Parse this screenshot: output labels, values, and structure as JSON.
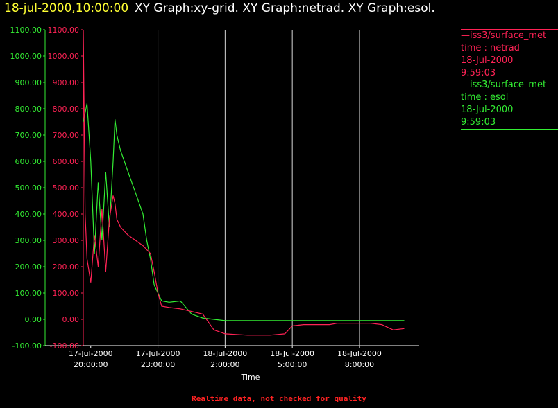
{
  "header": {
    "timestamp": "18-jul-2000,10:00:00",
    "title": "XY Graph:xy-grid.  XY Graph:netrad.  XY Graph:esol."
  },
  "legend": [
    {
      "line1": "—iss3/surface_met",
      "line2": "time : netrad",
      "line3": "18-Jul-2000",
      "line4": "9:59:03",
      "color": "#ff2255"
    },
    {
      "line1": "—iss3/surface_met",
      "line2": "time : esol",
      "line3": "18-Jul-2000",
      "line4": "9:59:03",
      "color": "#33ee33"
    }
  ],
  "footer": "Realtime data, not checked for quality",
  "chart_data": {
    "type": "line",
    "title": "",
    "xlabel": "Time",
    "ylabel": "",
    "ylim": [
      -100,
      1100
    ],
    "xlim": [
      "2000-07-17 19:40",
      "2000-07-18 10:40"
    ],
    "y_ticks": [
      "1100.00",
      "1000.00",
      "900.00",
      "800.00",
      "700.00",
      "600.00",
      "500.00",
      "400.00",
      "300.00",
      "200.00",
      "100.00",
      "0.00",
      "-100.00"
    ],
    "x_ticks": [
      {
        "date": "17-Jul-2000",
        "time": "20:00:00"
      },
      {
        "date": "17-Jul-2000",
        "time": "23:00:00"
      },
      {
        "date": "18-Jul-2000",
        "time": "2:00:00"
      },
      {
        "date": "18-Jul-2000",
        "time": "5:00:00"
      },
      {
        "date": "18-Jul-2000",
        "time": "8:00:00"
      }
    ],
    "grid": "vertical",
    "series": [
      {
        "name": "time : esol",
        "color": "#33ee33",
        "x": [
          "2000-07-17 19:40",
          "2000-07-17 19:50",
          "2000-07-17 20:00",
          "2000-07-17 20:10",
          "2000-07-17 20:20",
          "2000-07-17 20:30",
          "2000-07-17 20:40",
          "2000-07-17 20:50",
          "2000-07-17 21:00",
          "2000-07-17 21:05",
          "2000-07-17 21:10",
          "2000-07-17 21:20",
          "2000-07-17 21:30",
          "2000-07-17 21:40",
          "2000-07-17 21:50",
          "2000-07-17 22:00",
          "2000-07-17 22:10",
          "2000-07-17 22:20",
          "2000-07-17 22:30",
          "2000-07-17 22:40",
          "2000-07-17 22:50",
          "2000-07-17 23:00",
          "2000-07-17 23:10",
          "2000-07-17 23:30",
          "2000-07-18 00:00",
          "2000-07-18 00:30",
          "2000-07-18 01:00",
          "2000-07-18 01:30",
          "2000-07-18 02:00",
          "2000-07-18 03:00",
          "2000-07-18 04:00",
          "2000-07-18 05:00",
          "2000-07-18 06:00",
          "2000-07-18 07:00",
          "2000-07-18 08:00",
          "2000-07-18 09:00",
          "2000-07-18 10:00"
        ],
        "y": [
          750,
          820,
          600,
          250,
          520,
          300,
          560,
          350,
          600,
          760,
          700,
          640,
          600,
          560,
          520,
          480,
          440,
          400,
          300,
          230,
          130,
          100,
          70,
          65,
          70,
          20,
          5,
          0,
          -5,
          -5,
          -5,
          -5,
          -5,
          -5,
          -5,
          -5,
          -5
        ]
      },
      {
        "name": "time : netrad",
        "color": "#ff2255",
        "x": [
          "2000-07-17 19:40",
          "2000-07-17 19:45",
          "2000-07-17 19:50",
          "2000-07-17 20:00",
          "2000-07-17 20:10",
          "2000-07-17 20:20",
          "2000-07-17 20:30",
          "2000-07-17 20:40",
          "2000-07-17 20:50",
          "2000-07-17 21:00",
          "2000-07-17 21:05",
          "2000-07-17 21:10",
          "2000-07-17 21:20",
          "2000-07-17 21:40",
          "2000-07-17 22:00",
          "2000-07-17 22:20",
          "2000-07-17 22:40",
          "2000-07-17 22:50",
          "2000-07-17 23:00",
          "2000-07-17 23:10",
          "2000-07-17 23:30",
          "2000-07-18 00:00",
          "2000-07-18 00:30",
          "2000-07-18 01:00",
          "2000-07-18 01:30",
          "2000-07-18 02:00",
          "2000-07-18 03:00",
          "2000-07-18 04:00",
          "2000-07-18 04:40",
          "2000-07-18 05:00",
          "2000-07-18 05:30",
          "2000-07-18 06:00",
          "2000-07-18 06:40",
          "2000-07-18 07:00",
          "2000-07-18 08:00",
          "2000-07-18 08:30",
          "2000-07-18 09:00",
          "2000-07-18 09:30",
          "2000-07-18 10:00"
        ],
        "y": [
          1100,
          400,
          230,
          140,
          320,
          200,
          420,
          180,
          380,
          470,
          440,
          380,
          350,
          320,
          300,
          280,
          250,
          180,
          100,
          50,
          45,
          40,
          30,
          20,
          -40,
          -55,
          -60,
          -60,
          -55,
          -25,
          -20,
          -20,
          -20,
          -15,
          -15,
          -15,
          -20,
          -40,
          -35
        ]
      }
    ]
  }
}
